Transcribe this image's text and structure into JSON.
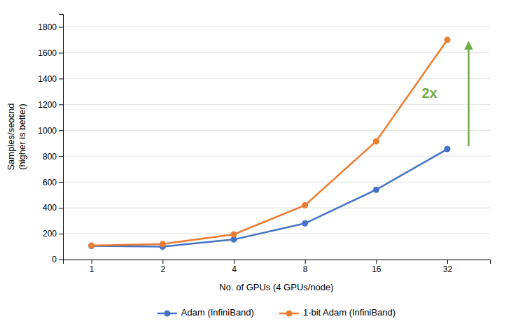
{
  "chart_data": {
    "type": "line",
    "categories": [
      "1",
      "2",
      "4",
      "8",
      "16",
      "32"
    ],
    "series": [
      {
        "name": "Adam (InfiniBand)",
        "color": "#4472C4",
        "marker": "circle",
        "values": [
          105,
          100,
          155,
          280,
          540,
          855
        ]
      },
      {
        "name": "1-bit Adam (InfiniBand)",
        "color": "#ED7D31",
        "marker": "circle",
        "values": [
          108,
          120,
          195,
          420,
          915,
          1700
        ]
      }
    ],
    "x_label": "No. of GPUs (4 GPUs/node)",
    "y_label": "Samples/seocnd\n(higher is better)",
    "ylim": [
      0,
      1900
    ],
    "yticks": [
      0,
      200,
      400,
      600,
      800,
      1000,
      1200,
      1400,
      1600,
      1800
    ],
    "grid": true,
    "legend": "bottom",
    "annotations": [
      {
        "text": "2x",
        "color": "#70AD47"
      }
    ]
  }
}
